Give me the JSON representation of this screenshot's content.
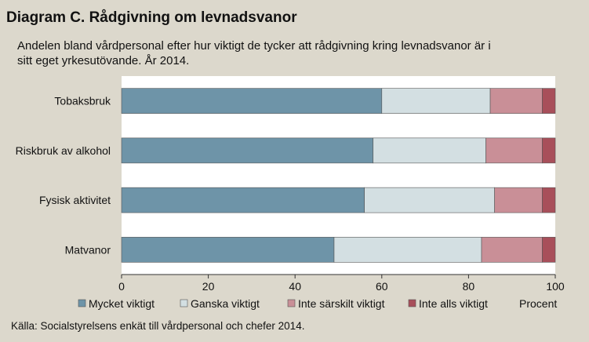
{
  "title": "Diagram C.  Rådgivning om levnadsvanor",
  "subtitle": "Andelen bland vårdpersonal efter hur viktigt de  tycker att rådgivning kring  levnadsvanor  är i sitt eget yrkesutövande. År 2014.",
  "source": "Källa: Socialstyrelsens enkät till vårdpersonal och chefer 2014.",
  "chart_data": {
    "type": "bar",
    "orientation": "horizontal",
    "stacked": true,
    "categories": [
      "Tobaksbruk",
      "Riskbruk av alkohol",
      "Fysisk aktivitet",
      "Matvanor"
    ],
    "series": [
      {
        "name": "Mycket viktigt",
        "color": "#6e94a8",
        "values": [
          60,
          58,
          56,
          49
        ]
      },
      {
        "name": "Ganska viktigt",
        "color": "#d3dfe2",
        "values": [
          25,
          26,
          30,
          34
        ]
      },
      {
        "name": "Inte särskilt viktigt",
        "color": "#c98f97",
        "values": [
          12,
          13,
          11,
          14
        ]
      },
      {
        "name": "Inte alls viktigt",
        "color": "#a84f5a",
        "values": [
          3,
          3,
          3,
          3
        ]
      }
    ],
    "xlim": [
      0,
      100
    ],
    "xticks": [
      0,
      20,
      40,
      60,
      80,
      100
    ],
    "xlabel": "Procent",
    "grid": false,
    "legend_position": "bottom"
  }
}
